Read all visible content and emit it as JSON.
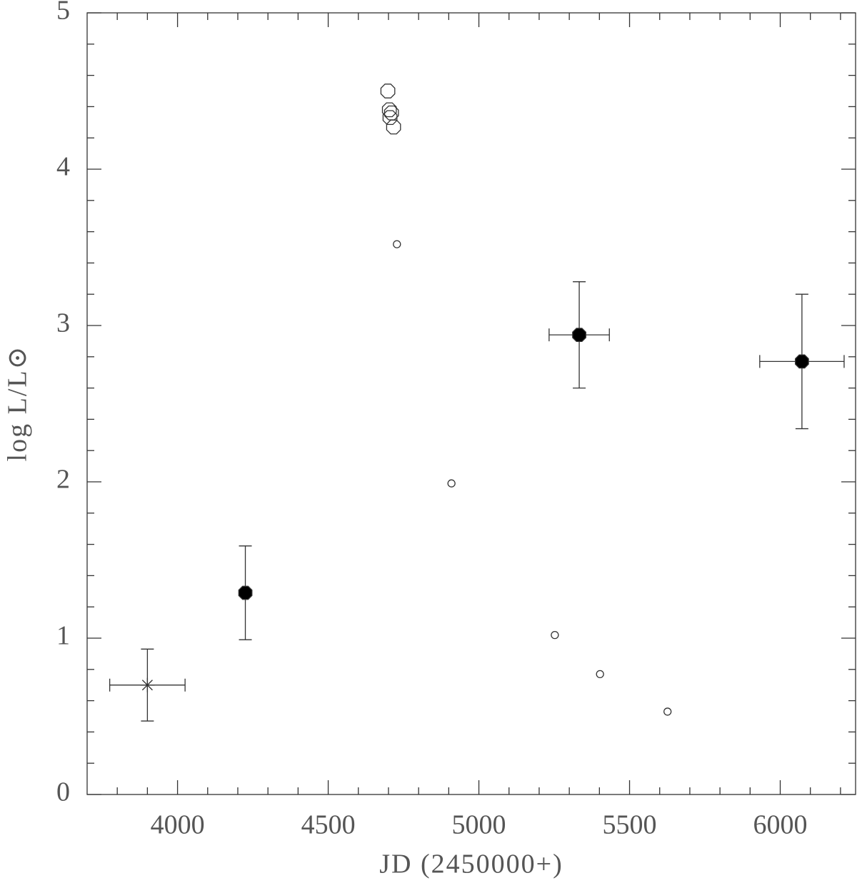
{
  "chart_data": {
    "type": "scatter",
    "xlabel": "JD (2450000+)",
    "ylabel": "log L/L⊙",
    "xlim": [
      3700,
      6250
    ],
    "ylim": [
      0,
      5
    ],
    "xticks": [
      4000,
      4500,
      5000,
      5500,
      6000
    ],
    "yticks": [
      0,
      1,
      2,
      3,
      4,
      5
    ],
    "xminorticks": [
      3800,
      3900,
      4100,
      4200,
      4300,
      4400,
      4600,
      4700,
      4800,
      4900,
      5100,
      5200,
      5300,
      5400,
      5600,
      5700,
      5800,
      5900,
      6100,
      6200
    ],
    "yminorticks": [
      0.2,
      0.4,
      0.6,
      0.8,
      1.2,
      1.4,
      1.6,
      1.8,
      2.2,
      2.4,
      2.6,
      2.8,
      3.2,
      3.4,
      3.6,
      3.8,
      4.2,
      4.4,
      4.6,
      4.8
    ],
    "series": [
      {
        "marker": "asterisk",
        "color": "#000000",
        "x": [
          3900
        ],
        "values": [
          0.7
        ],
        "xerr": [
          125
        ],
        "yerr": [
          0.23
        ]
      },
      {
        "marker": "filled-octagon",
        "color": "#000000",
        "x": [
          4225,
          5333,
          6072
        ],
        "values": [
          1.29,
          2.94,
          2.77
        ],
        "xerr": [
          null,
          100,
          140
        ],
        "yerr": [
          0.3,
          0.34,
          0.43
        ]
      },
      {
        "marker": "open-octagon",
        "color": "#333333",
        "x": [
          4698,
          4703,
          4710,
          4705,
          4717
        ],
        "values": [
          4.5,
          4.38,
          4.36,
          4.33,
          4.27
        ]
      },
      {
        "marker": "small-circle",
        "color": "#333333",
        "x": [
          4728,
          4909,
          5252,
          5402,
          5626
        ],
        "values": [
          3.52,
          1.99,
          1.02,
          0.77,
          0.53
        ]
      }
    ]
  }
}
